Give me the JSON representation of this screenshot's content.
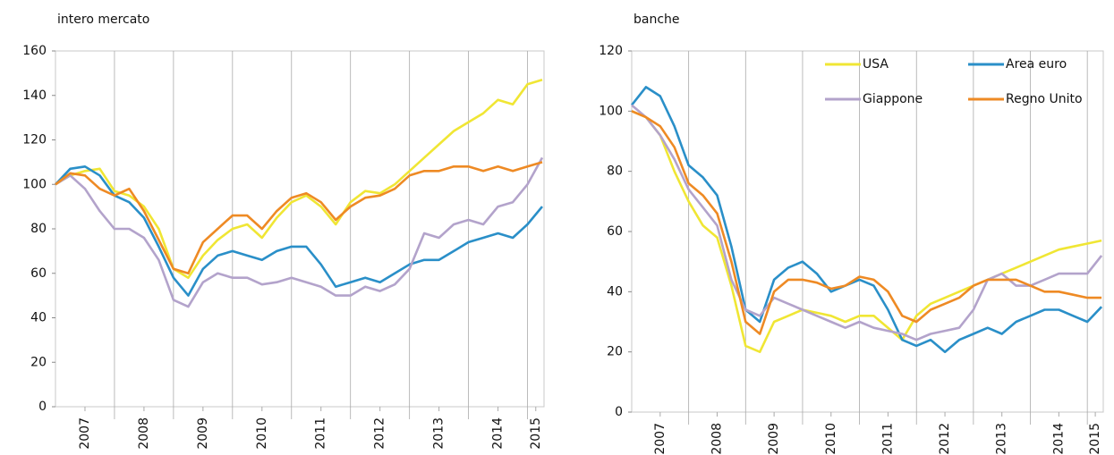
{
  "chart_data": [
    {
      "type": "line",
      "title": "intero mercato",
      "x": [
        2007.0,
        2007.25,
        2007.5,
        2007.75,
        2008.0,
        2008.25,
        2008.5,
        2008.75,
        2009.0,
        2009.25,
        2009.5,
        2009.75,
        2010.0,
        2010.25,
        2010.5,
        2010.75,
        2011.0,
        2011.25,
        2011.5,
        2011.75,
        2012.0,
        2012.25,
        2012.5,
        2012.75,
        2013.0,
        2013.25,
        2013.5,
        2013.75,
        2014.0,
        2014.25,
        2014.5,
        2014.75,
        2015.0,
        2015.25
      ],
      "series": [
        {
          "name": "USA",
          "color": "#f0e634",
          "values": [
            100,
            104,
            106,
            107,
            97,
            95,
            90,
            80,
            62,
            58,
            68,
            75,
            80,
            82,
            76,
            85,
            92,
            95,
            90,
            82,
            92,
            97,
            96,
            100,
            106,
            112,
            118,
            124,
            128,
            132,
            138,
            136,
            145,
            147
          ]
        },
        {
          "name": "Area euro",
          "color": "#2a8fc8",
          "values": [
            100,
            107,
            108,
            104,
            95,
            92,
            85,
            72,
            58,
            50,
            62,
            68,
            70,
            68,
            66,
            70,
            72,
            72,
            64,
            54,
            56,
            58,
            56,
            60,
            64,
            66,
            66,
            70,
            74,
            76,
            78,
            76,
            82,
            90
          ]
        },
        {
          "name": "Giappone",
          "color": "#b3a3cb",
          "values": [
            100,
            104,
            98,
            88,
            80,
            80,
            76,
            66,
            48,
            45,
            56,
            60,
            58,
            58,
            55,
            56,
            58,
            56,
            54,
            50,
            50,
            54,
            52,
            55,
            62,
            78,
            76,
            82,
            84,
            82,
            90,
            92,
            100,
            112
          ]
        },
        {
          "name": "Regno Unito",
          "color": "#ee8a24",
          "values": [
            100,
            105,
            104,
            98,
            95,
            98,
            88,
            75,
            62,
            60,
            74,
            80,
            86,
            86,
            80,
            88,
            94,
            96,
            92,
            84,
            90,
            94,
            95,
            98,
            104,
            106,
            106,
            108,
            108,
            106,
            108,
            106,
            108,
            110
          ]
        }
      ],
      "xlim": [
        2007.0,
        2015.28
      ],
      "xticks": [
        {
          "value": 2007.5,
          "label": "2007"
        },
        {
          "value": 2008.5,
          "label": "2008"
        },
        {
          "value": 2009.5,
          "label": "2009"
        },
        {
          "value": 2010.5,
          "label": "2010"
        },
        {
          "value": 2011.5,
          "label": "2011"
        },
        {
          "value": 2012.5,
          "label": "2012"
        },
        {
          "value": 2013.5,
          "label": "2013"
        },
        {
          "value": 2014.5,
          "label": "2014"
        },
        {
          "value": 2015.14,
          "label": "2015"
        }
      ],
      "xgrid": [
        2008,
        2009,
        2010,
        2011,
        2012,
        2013,
        2014,
        2015
      ],
      "ylim": [
        0,
        160
      ],
      "yticks": [
        0,
        20,
        40,
        60,
        80,
        100,
        120,
        140,
        160
      ],
      "legend": false
    },
    {
      "type": "line",
      "title": "banche",
      "x": [
        2007.0,
        2007.25,
        2007.5,
        2007.75,
        2008.0,
        2008.25,
        2008.5,
        2008.75,
        2009.0,
        2009.25,
        2009.5,
        2009.75,
        2010.0,
        2010.25,
        2010.5,
        2010.75,
        2011.0,
        2011.25,
        2011.5,
        2011.75,
        2012.0,
        2012.25,
        2012.5,
        2012.75,
        2013.0,
        2013.25,
        2013.5,
        2013.75,
        2014.0,
        2014.25,
        2014.5,
        2014.75,
        2015.0,
        2015.25
      ],
      "series": [
        {
          "name": "USA",
          "color": "#f0e634",
          "values": [
            100,
            98,
            92,
            80,
            70,
            62,
            58,
            42,
            22,
            20,
            30,
            32,
            34,
            33,
            32,
            30,
            32,
            32,
            28,
            24,
            32,
            36,
            38,
            40,
            42,
            44,
            46,
            48,
            50,
            52,
            54,
            55,
            56,
            57
          ]
        },
        {
          "name": "Area euro",
          "color": "#2a8fc8",
          "values": [
            102,
            108,
            105,
            95,
            82,
            78,
            72,
            55,
            34,
            30,
            44,
            48,
            50,
            46,
            40,
            42,
            44,
            42,
            34,
            24,
            22,
            24,
            20,
            24,
            26,
            28,
            26,
            30,
            32,
            34,
            34,
            32,
            30,
            35
          ]
        },
        {
          "name": "Giappone",
          "color": "#b3a3cb",
          "values": [
            102,
            98,
            92,
            84,
            74,
            68,
            62,
            44,
            34,
            32,
            38,
            36,
            34,
            32,
            30,
            28,
            30,
            28,
            27,
            26,
            24,
            26,
            27,
            28,
            34,
            44,
            46,
            42,
            42,
            44,
            46,
            46,
            46,
            52
          ]
        },
        {
          "name": "Regno Unito",
          "color": "#ee8a24",
          "values": [
            100,
            98,
            95,
            88,
            76,
            72,
            66,
            50,
            30,
            26,
            40,
            44,
            44,
            43,
            41,
            42,
            45,
            44,
            40,
            32,
            30,
            34,
            36,
            38,
            42,
            44,
            44,
            44,
            42,
            40,
            40,
            39,
            38,
            38
          ]
        }
      ],
      "xlim": [
        2007.0,
        2015.28
      ],
      "xticks": [
        {
          "value": 2007.5,
          "label": "2007"
        },
        {
          "value": 2008.5,
          "label": "2008"
        },
        {
          "value": 2009.5,
          "label": "2009"
        },
        {
          "value": 2010.5,
          "label": "2010"
        },
        {
          "value": 2011.5,
          "label": "2011"
        },
        {
          "value": 2012.5,
          "label": "2012"
        },
        {
          "value": 2013.5,
          "label": "2013"
        },
        {
          "value": 2014.5,
          "label": "2014"
        },
        {
          "value": 2015.14,
          "label": "2015"
        }
      ],
      "xgrid": [
        2008,
        2009,
        2010,
        2011,
        2012,
        2013,
        2014,
        2015
      ],
      "ylim": [
        0,
        120
      ],
      "yticks": [
        0,
        20,
        40,
        60,
        80,
        100,
        120
      ],
      "legend": "upper right"
    }
  ]
}
